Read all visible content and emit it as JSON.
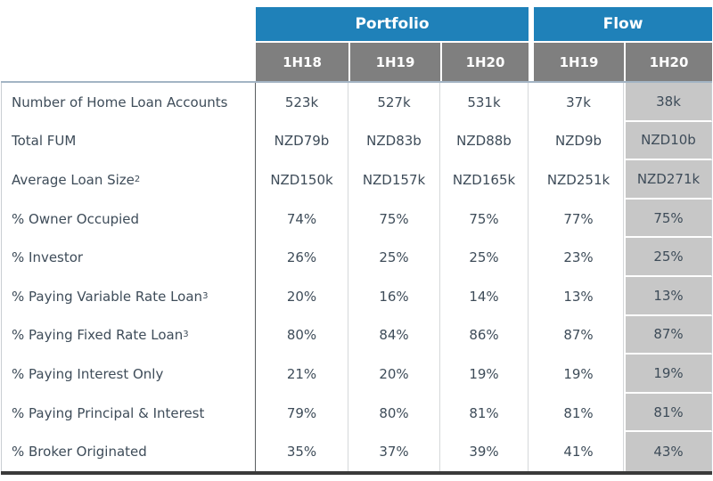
{
  "colors": {
    "header_blue": "#1F81B9",
    "header_gray": "#7F7F7F",
    "highlight_column": "#C7C7C7",
    "body_text": "#3E4C59",
    "bottom_border": "#3A3A3A"
  },
  "table": {
    "groups": [
      {
        "label": "Portfolio",
        "span": 3
      },
      {
        "label": "Flow",
        "span": 2
      }
    ],
    "column_headers": [
      "1H18",
      "1H19",
      "1H20",
      "1H19",
      "1H20"
    ],
    "rows": [
      {
        "label": "Number of Home Loan Accounts",
        "sup": "",
        "values": [
          "523k",
          "527k",
          "531k",
          "37k",
          "38k"
        ]
      },
      {
        "label": "Total FUM",
        "sup": "",
        "values": [
          "NZD79b",
          "NZD83b",
          "NZD88b",
          "NZD9b",
          "NZD10b"
        ]
      },
      {
        "label": "Average Loan Size",
        "sup": "2",
        "values": [
          "NZD150k",
          "NZD157k",
          "NZD165k",
          "NZD251k",
          "NZD271k"
        ]
      },
      {
        "label": "% Owner Occupied",
        "sup": "",
        "values": [
          "74%",
          "75%",
          "75%",
          "77%",
          "75%"
        ]
      },
      {
        "label": "% Investor",
        "sup": "",
        "values": [
          "26%",
          "25%",
          "25%",
          "23%",
          "25%"
        ]
      },
      {
        "label": "% Paying Variable Rate Loan",
        "sup": "3",
        "values": [
          "20%",
          "16%",
          "14%",
          "13%",
          "13%"
        ]
      },
      {
        "label": "% Paying Fixed Rate Loan",
        "sup": "3",
        "values": [
          "80%",
          "84%",
          "86%",
          "87%",
          "87%"
        ]
      },
      {
        "label": "% Paying Interest Only",
        "sup": "",
        "values": [
          "21%",
          "20%",
          "19%",
          "19%",
          "19%"
        ]
      },
      {
        "label": "% Paying Principal & Interest",
        "sup": "",
        "values": [
          "79%",
          "80%",
          "81%",
          "81%",
          "81%"
        ]
      },
      {
        "label": "% Broker Originated",
        "sup": "",
        "values": [
          "35%",
          "37%",
          "39%",
          "41%",
          "43%"
        ]
      }
    ]
  },
  "chart_data": {
    "type": "table",
    "title": "",
    "column_groups": [
      "Portfolio",
      "Portfolio",
      "Portfolio",
      "Flow",
      "Flow"
    ],
    "columns": [
      "1H18",
      "1H19",
      "1H20",
      "1H19",
      "1H20"
    ],
    "row_labels": [
      "Number of Home Loan Accounts",
      "Total FUM",
      "Average Loan Size(2)",
      "% Owner Occupied",
      "% Investor",
      "% Paying Variable Rate Loan(3)",
      "% Paying Fixed Rate Loan(3)",
      "% Paying Interest Only",
      "% Paying Principal & Interest",
      "% Broker Originated"
    ],
    "cells": [
      [
        "523k",
        "527k",
        "531k",
        "37k",
        "38k"
      ],
      [
        "NZD79b",
        "NZD83b",
        "NZD88b",
        "NZD9b",
        "NZD10b"
      ],
      [
        "NZD150k",
        "NZD157k",
        "NZD165k",
        "NZD251k",
        "NZD271k"
      ],
      [
        "74%",
        "75%",
        "75%",
        "77%",
        "75%"
      ],
      [
        "26%",
        "25%",
        "25%",
        "23%",
        "25%"
      ],
      [
        "20%",
        "16%",
        "14%",
        "13%",
        "13%"
      ],
      [
        "80%",
        "84%",
        "86%",
        "87%",
        "87%"
      ],
      [
        "21%",
        "20%",
        "19%",
        "19%",
        "19%"
      ],
      [
        "79%",
        "80%",
        "81%",
        "81%",
        "81%"
      ],
      [
        "35%",
        "37%",
        "39%",
        "41%",
        "43%"
      ]
    ],
    "layout_hints": {
      "highlighted_column": "Flow 1H20",
      "group_header_color": "#1F81B9",
      "column_header_color": "#7F7F7F"
    }
  }
}
